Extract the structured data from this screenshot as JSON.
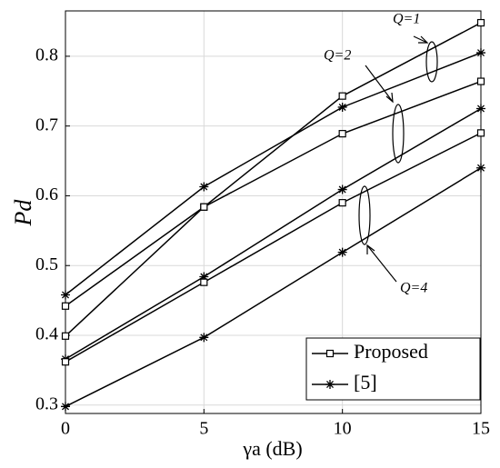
{
  "chart_data": {
    "type": "line",
    "xlabel": "γa (dB)",
    "ylabel": "Pd",
    "x": [
      0,
      5,
      10,
      15
    ],
    "xlim": [
      0,
      15
    ],
    "xticks": [
      0,
      5,
      10,
      15
    ],
    "ylim": [
      0.288,
      0.865
    ],
    "yticks": [
      0.3,
      0.4,
      0.5,
      0.6,
      0.7,
      0.8
    ],
    "grid": true,
    "legend": "lower right",
    "series": [
      {
        "name": "Proposed",
        "color": "#000000",
        "marker": "square",
        "values": [
          0.442,
          0.584,
          0.743,
          0.848
        ]
      },
      {
        "name": "[5]",
        "color": "#000000",
        "marker": "star",
        "values": [
          0.458,
          0.613,
          0.727,
          0.805
        ]
      },
      {
        "name": "Proposed",
        "color": "#000000",
        "marker": "square",
        "values": [
          0.399,
          0.584,
          0.689,
          0.764
        ]
      },
      {
        "name": "[5]",
        "color": "#000000",
        "marker": "star",
        "values": [
          0.366,
          0.484,
          0.609,
          0.725
        ]
      },
      {
        "name": "Proposed",
        "color": "#000000",
        "marker": "square",
        "values": [
          0.362,
          0.476,
          0.59,
          0.69
        ]
      },
      {
        "name": "[5]",
        "color": "#000000",
        "marker": "star",
        "values": [
          0.298,
          0.397,
          0.519,
          0.64
        ]
      }
    ],
    "annotations": [
      "Q=1",
      "Q=2",
      "Q=4"
    ]
  }
}
